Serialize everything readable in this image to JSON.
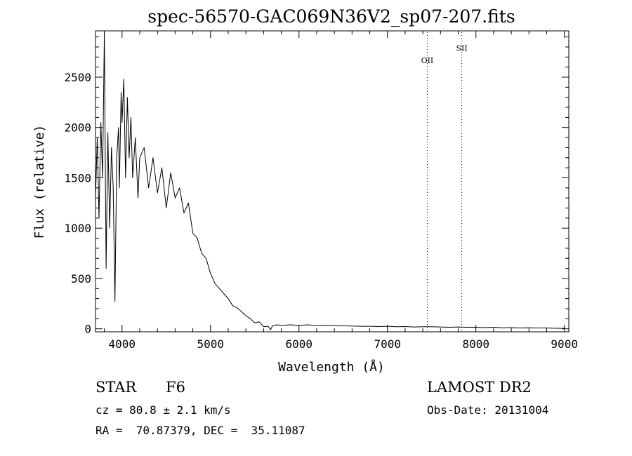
{
  "chart_data": {
    "type": "line",
    "title": "spec-56570-GAC069N36V2_sp07-207.fits",
    "xlabel": "Wavelength (Å)",
    "ylabel": "Flux (relative)",
    "xlim": [
      3700,
      9050
    ],
    "ylim": [
      -30,
      2960
    ],
    "xticks": [
      4000,
      5000,
      6000,
      7000,
      8000,
      9000
    ],
    "xtick_labels": [
      "4000",
      "5000",
      "6000",
      "7000",
      "8000",
      "9000"
    ],
    "yticks": [
      0,
      500,
      1000,
      1500,
      2000,
      2500
    ],
    "ytick_labels": [
      "0",
      "500",
      "1000",
      "1500",
      "2000",
      "2500"
    ],
    "grid": false,
    "line_color": "#000000",
    "series": [
      {
        "x": [
          3700,
          3720,
          3740,
          3760,
          3780,
          3800,
          3810,
          3820,
          3840,
          3860,
          3880,
          3900,
          3920,
          3940,
          3960,
          3970,
          3990,
          4000,
          4020,
          4040,
          4060,
          4080,
          4100,
          4120,
          4150,
          4180,
          4200,
          4250,
          4300,
          4350,
          4400,
          4450,
          4500,
          4550,
          4600,
          4650,
          4700,
          4750,
          4800,
          4850,
          4900,
          4950,
          5000,
          5050,
          5100,
          5150,
          5200,
          5250,
          5300,
          5350,
          5400,
          5450,
          5500,
          5550,
          5600,
          5650,
          5680,
          5700,
          5750,
          5800,
          5900,
          6000,
          6100,
          6200,
          6300,
          6400,
          6500,
          6600,
          6700,
          6800,
          6900,
          7000,
          7100,
          7200,
          7300,
          7400,
          7500,
          7600,
          7700,
          7800,
          7900,
          8000,
          8100,
          8200,
          8300,
          8400,
          8500,
          8600,
          8700,
          8800,
          8900,
          9000
        ],
        "y": [
          1300,
          1900,
          1100,
          2050,
          1500,
          2940,
          1700,
          600,
          1950,
          1000,
          1800,
          1400,
          270,
          1700,
          2000,
          1400,
          2350,
          2050,
          2480,
          1500,
          2300,
          1700,
          2100,
          1500,
          1900,
          1300,
          1700,
          1800,
          1400,
          1700,
          1350,
          1600,
          1200,
          1550,
          1300,
          1400,
          1150,
          1250,
          950,
          900,
          750,
          700,
          550,
          450,
          400,
          350,
          300,
          230,
          210,
          170,
          130,
          100,
          60,
          70,
          20,
          25,
          -10,
          30,
          40,
          35,
          40,
          35,
          40,
          30,
          35,
          30,
          30,
          28,
          25,
          25,
          22,
          25,
          20,
          22,
          18,
          20,
          20,
          18,
          15,
          18,
          15,
          15,
          12,
          15,
          10,
          12,
          8,
          10,
          8,
          8,
          5,
          5
        ]
      }
    ],
    "annotations": [
      {
        "label": "OII",
        "x": 7450,
        "label_y": 2640
      },
      {
        "label": "SII",
        "x": 7840,
        "label_y": 2760
      }
    ]
  },
  "info": {
    "object_class": "STAR",
    "subclass": "F6",
    "redshift_line": "cz = 80.8 ± 2.1 km/s",
    "coords_line": "RA =  70.87379, DEC =  35.11087",
    "survey": "LAMOST DR2",
    "obs_date": "Obs-Date: 20131004"
  }
}
